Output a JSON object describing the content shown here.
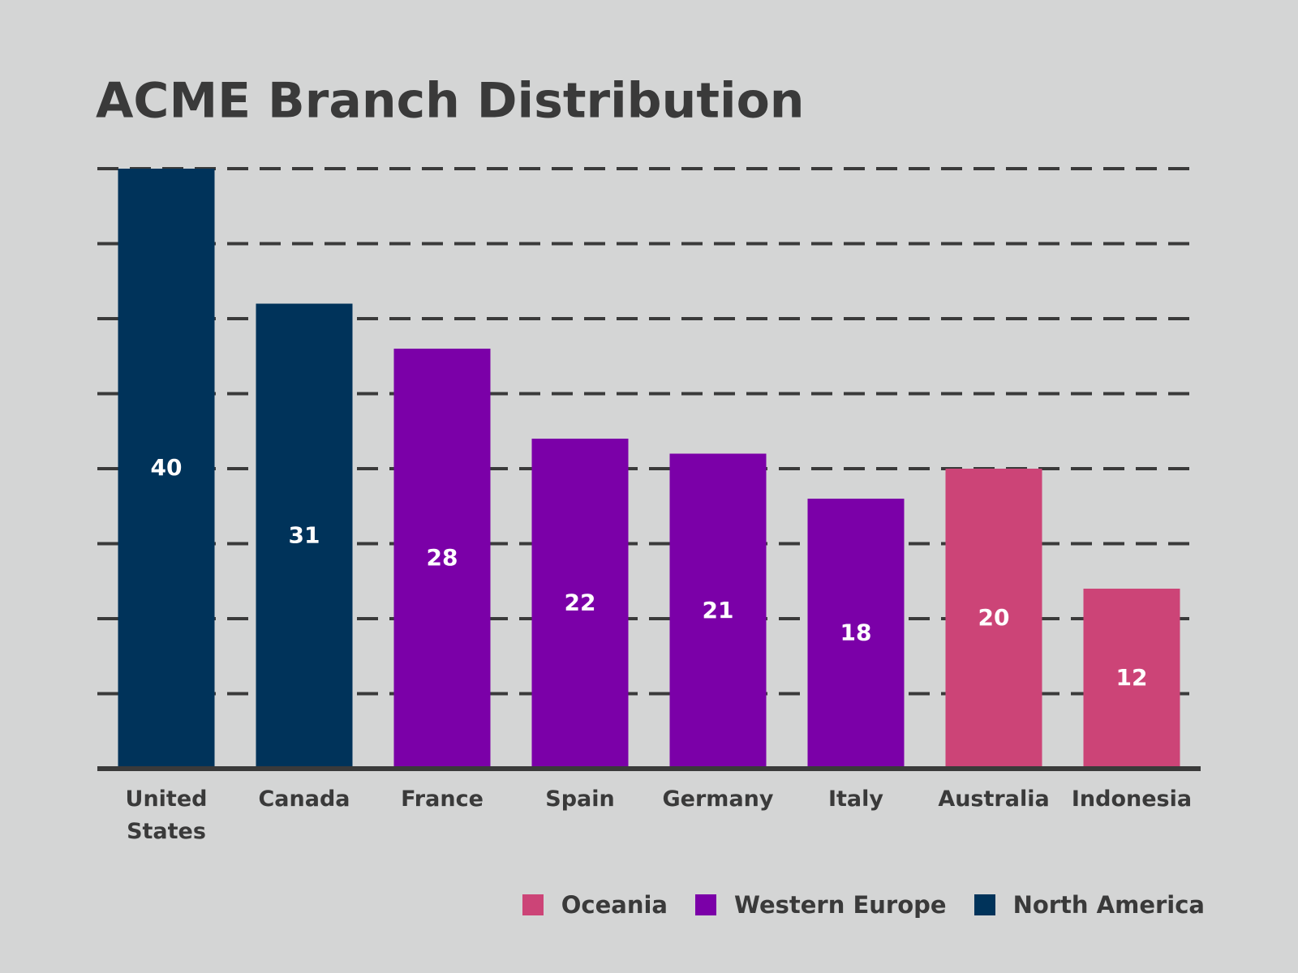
{
  "chart_data": {
    "type": "bar",
    "title": "ACME Branch Distribution",
    "categories": [
      "United States",
      "Canada",
      "France",
      "Spain",
      "Germany",
      "Italy",
      "Australia",
      "Indonesia"
    ],
    "series": [
      {
        "name": "Oceania",
        "color": "#cc4477",
        "values": [
          null,
          null,
          null,
          null,
          null,
          null,
          20,
          12
        ]
      },
      {
        "name": "Western Europe",
        "color": "#7b00a8",
        "values": [
          null,
          null,
          28,
          22,
          21,
          18,
          null,
          null
        ]
      },
      {
        "name": "North America",
        "color": "#00335a",
        "values": [
          40,
          31,
          null,
          null,
          null,
          null,
          null,
          null
        ]
      }
    ],
    "ylim": [
      0,
      40
    ],
    "yticks": [
      0,
      5,
      10,
      15,
      20,
      25,
      30,
      35,
      40
    ],
    "grid": true
  }
}
